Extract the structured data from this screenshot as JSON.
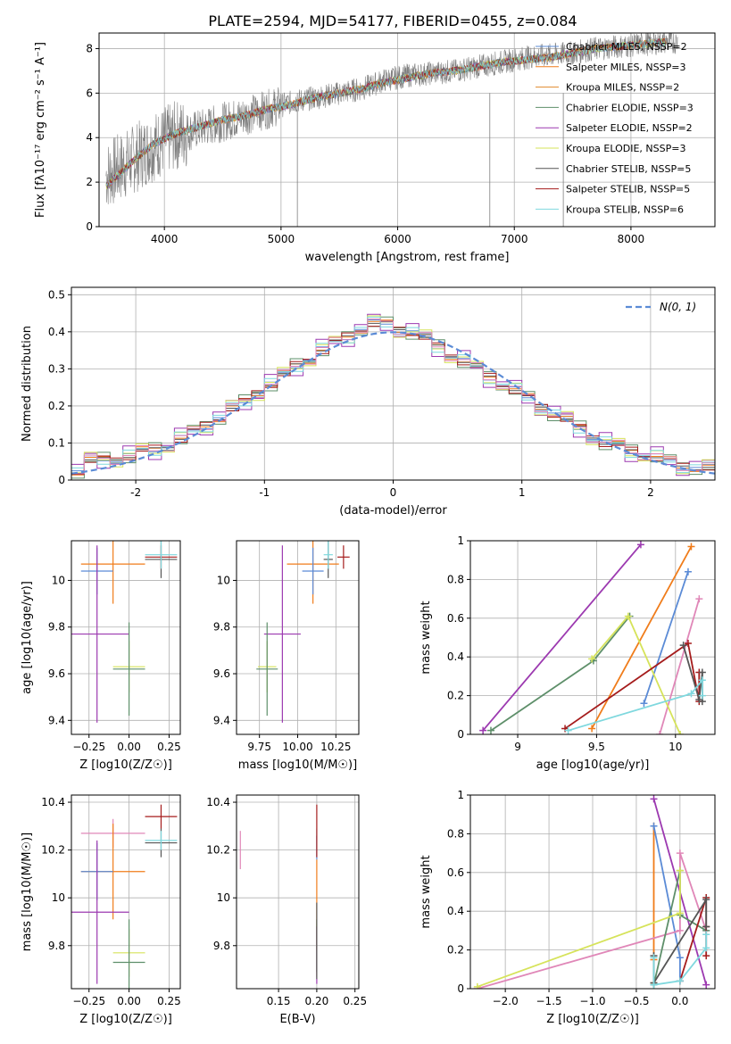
{
  "figure": {
    "title": "PLATE=2594, MJD=54177, FIBERID=0455, z=0.084"
  },
  "chart_data": [
    {
      "id": "spectrum",
      "type": "line",
      "xlabel": "wavelength [Angstrom, rest frame]",
      "ylabel": "Flux [fλ10⁻¹⁷ erg cm⁻² s⁻¹ A⁻¹]",
      "xlim": [
        3440,
        8720
      ],
      "ylim": [
        0,
        8.7
      ],
      "xticks": [
        4000,
        5000,
        6000,
        7000,
        8000
      ],
      "yticks": [
        0,
        2,
        4,
        6,
        8
      ],
      "observed": {
        "color": "#808080",
        "x": [
          3500,
          3700,
          3900,
          4100,
          4300,
          4500,
          4700,
          4900,
          5100,
          5300,
          5500,
          5700,
          5900,
          6100,
          6300,
          6500,
          6700,
          6900,
          7100,
          7300,
          7500,
          7700,
          7900,
          8100,
          8300
        ],
        "y": [
          2.3,
          2.9,
          3.6,
          4.1,
          4.4,
          4.7,
          5.0,
          5.3,
          5.6,
          5.8,
          6.0,
          6.2,
          6.6,
          6.8,
          6.9,
          7.0,
          7.2,
          7.4,
          7.6,
          7.7,
          7.8,
          8.0,
          8.1,
          8.2,
          8.3
        ]
      },
      "model": {
        "x": [
          3500,
          3700,
          3900,
          4100,
          4300,
          4500,
          4700,
          4900,
          5100,
          5300,
          5500,
          5700,
          5900,
          6100,
          6300,
          6500,
          6700,
          6900,
          7100,
          7300,
          7500,
          7700,
          7900,
          8100,
          8300
        ],
        "y": [
          1.8,
          2.8,
          3.7,
          4.2,
          4.5,
          4.8,
          5.0,
          5.3,
          5.5,
          5.8,
          6.0,
          6.2,
          6.5,
          6.7,
          6.9,
          7.0,
          7.2,
          7.4,
          7.5,
          7.6,
          7.8,
          8.0,
          8.1,
          8.2,
          8.3
        ]
      },
      "legend": [
        {
          "label": "Chabrier MILES, N_SSP=2",
          "color": "#5b8bd6"
        },
        {
          "label": "Salpeter MILES, N_SSP=3",
          "color": "#f07c1a"
        },
        {
          "label": "Kroupa MILES, N_SSP=2",
          "color": "#e08a2c"
        },
        {
          "label": "Chabrier ELODIE, N_SSP=3",
          "color": "#5e8f6a"
        },
        {
          "label": "Salpeter ELODIE, N_SSP=2",
          "color": "#9c39b0"
        },
        {
          "label": "Kroupa ELODIE, N_SSP=3",
          "color": "#d6e35a"
        },
        {
          "label": "Chabrier STELIB, N_SSP=5",
          "color": "#555555"
        },
        {
          "label": "Salpeter STELIB, N_SSP=5",
          "color": "#a51c1c"
        },
        {
          "label": "Kroupa STELIB, N_SSP=6",
          "color": "#7fd8de"
        }
      ],
      "legend_position": "right"
    },
    {
      "id": "residuals",
      "type": "line",
      "xlabel": "(data-model)/error",
      "ylabel": "Normed distribution",
      "xlim": [
        -2.5,
        2.5
      ],
      "ylim": [
        0,
        0.52
      ],
      "xticks": [
        -2,
        -1,
        0,
        1,
        2
      ],
      "yticks": [
        0.0,
        0.1,
        0.2,
        0.3,
        0.4,
        0.5
      ],
      "series": [
        {
          "name": "N(0,1)",
          "color": "#5b8bd6",
          "dashed": true,
          "x": [
            -2.5,
            -2.0,
            -1.5,
            -1.0,
            -0.5,
            0.0,
            0.5,
            1.0,
            1.5,
            2.0,
            2.5
          ],
          "y": [
            0.018,
            0.054,
            0.13,
            0.242,
            0.352,
            0.399,
            0.352,
            0.242,
            0.13,
            0.054,
            0.018
          ]
        }
      ],
      "histogram_bin_edges": [
        -2.5,
        -2.4,
        -2.3,
        -2.2,
        -2.1,
        -2.0,
        -1.9,
        -1.8,
        -1.7,
        -1.6,
        -1.5,
        -1.4,
        -1.3,
        -1.2,
        -1.1,
        -1.0,
        -0.9,
        -0.8,
        -0.7,
        -0.6,
        -0.5,
        -0.4,
        -0.3,
        -0.2,
        -0.1,
        0.0,
        0.1,
        0.2,
        0.3,
        0.4,
        0.5,
        0.6,
        0.7,
        0.8,
        0.9,
        1.0,
        1.1,
        1.2,
        1.3,
        1.4,
        1.5,
        1.6,
        1.7,
        1.8,
        1.9,
        2.0,
        2.1,
        2.2,
        2.3,
        2.4,
        2.5
      ],
      "histogram_base": [
        0.025,
        0.05,
        0.055,
        0.06,
        0.065,
        0.075,
        0.085,
        0.095,
        0.11,
        0.13,
        0.15,
        0.17,
        0.19,
        0.21,
        0.24,
        0.26,
        0.28,
        0.31,
        0.33,
        0.35,
        0.37,
        0.39,
        0.41,
        0.42,
        0.42,
        0.41,
        0.4,
        0.38,
        0.36,
        0.34,
        0.32,
        0.3,
        0.28,
        0.26,
        0.24,
        0.22,
        0.2,
        0.18,
        0.16,
        0.14,
        0.12,
        0.1,
        0.09,
        0.08,
        0.07,
        0.06,
        0.05,
        0.04,
        0.035,
        0.03
      ],
      "histograms": [
        {
          "color": "#5b8bd6",
          "jitter": 0.012
        },
        {
          "color": "#f07c1a",
          "jitter": -0.015
        },
        {
          "color": "#5e8f6a",
          "jitter": 0.02
        },
        {
          "color": "#9c39b0",
          "jitter": 0.03
        },
        {
          "color": "#d6e35a",
          "jitter": -0.025
        },
        {
          "color": "#555555",
          "jitter": 0.008
        },
        {
          "color": "#a51c1c",
          "jitter": -0.01
        },
        {
          "color": "#7fd8de",
          "jitter": -0.02
        },
        {
          "color": "#e087b8",
          "jitter": 0.018
        }
      ],
      "legend": [
        {
          "label": "N(0, 1)",
          "color": "#5b8bd6"
        }
      ],
      "legend_position": "top-right"
    },
    {
      "id": "age-vs-Z",
      "type": "scatter",
      "xlabel": "Z [log10(Z/Z☉)]",
      "ylabel": "age  [log10(age/yr)]",
      "xlim": [
        -0.36,
        0.32
      ],
      "ylim": [
        9.34,
        10.17
      ],
      "xticks": [
        -0.25,
        0.0,
        0.25
      ],
      "xticklabels": [
        "−0.25",
        "0.00",
        "0.25"
      ],
      "yticks": [
        9.4,
        9.6,
        9.8,
        10.0
      ],
      "points": [
        {
          "color": "#f07c1a",
          "x": -0.1,
          "xerr": 0.2,
          "y": 10.07,
          "yerr": 0.17
        },
        {
          "color": "#5b8bd6",
          "x": -0.2,
          "xerr": 0.1,
          "y": 10.04,
          "yerr": 0.1
        },
        {
          "color": "#9c39b0",
          "x": -0.2,
          "xerr": 0.2,
          "y": 9.77,
          "yerr": 0.38
        },
        {
          "color": "#d6e35a",
          "x": 0.0,
          "xerr": 0.1,
          "y": 9.63,
          "yerr": 0.11
        },
        {
          "color": "#5e8f6a",
          "x": 0.0,
          "xerr": 0.1,
          "y": 9.62,
          "yerr": 0.2
        },
        {
          "color": "#555555",
          "x": 0.2,
          "xerr": 0.1,
          "y": 10.09,
          "yerr": 0.08
        },
        {
          "color": "#a51c1c",
          "x": 0.2,
          "xerr": 0.1,
          "y": 10.1,
          "yerr": 0.05
        },
        {
          "color": "#7fd8de",
          "x": 0.2,
          "xerr": 0.1,
          "y": 10.11,
          "yerr": 0.06
        }
      ]
    },
    {
      "id": "age-vs-mass",
      "type": "scatter",
      "xlabel": "mass [log10(M/M☉)]",
      "ylabel": "",
      "xlim": [
        9.6,
        10.4
      ],
      "ylim": [
        9.34,
        10.17
      ],
      "xticks": [
        9.75,
        10.0,
        10.25
      ],
      "xticklabels": [
        "9.75",
        "10.00",
        "10.25"
      ],
      "yticks": [
        9.4,
        9.6,
        9.8,
        10.0
      ],
      "points": [
        {
          "color": "#f07c1a",
          "x": 10.1,
          "xerr": 0.17,
          "y": 10.07,
          "yerr": 0.17
        },
        {
          "color": "#5b8bd6",
          "x": 10.1,
          "xerr": 0.07,
          "y": 10.04,
          "yerr": 0.1
        },
        {
          "color": "#9c39b0",
          "x": 9.9,
          "xerr": 0.12,
          "y": 9.77,
          "yerr": 0.38
        },
        {
          "color": "#d6e35a",
          "x": 9.8,
          "xerr": 0.06,
          "y": 9.63,
          "yerr": 0.11
        },
        {
          "color": "#5e8f6a",
          "x": 9.8,
          "xerr": 0.07,
          "y": 9.62,
          "yerr": 0.2
        },
        {
          "color": "#555555",
          "x": 10.2,
          "xerr": 0.03,
          "y": 10.09,
          "yerr": 0.08
        },
        {
          "color": "#a51c1c",
          "x": 10.3,
          "xerr": 0.04,
          "y": 10.1,
          "yerr": 0.05
        },
        {
          "color": "#7fd8de",
          "x": 10.2,
          "xerr": 0.03,
          "y": 10.11,
          "yerr": 0.06
        }
      ]
    },
    {
      "id": "weight-vs-age",
      "type": "line",
      "xlabel": "age  [log10(age/yr)]",
      "ylabel": "mass weight",
      "xlim": [
        8.7,
        10.25
      ],
      "ylim": [
        0.0,
        1.0
      ],
      "xticks": [
        9.0,
        9.5,
        10.0
      ],
      "yticks": [
        0.0,
        0.2,
        0.4,
        0.6,
        0.8,
        1.0
      ],
      "series": [
        {
          "color": "#9c39b0",
          "x": [
            8.78,
            9.78
          ],
          "y": [
            0.02,
            0.98
          ]
        },
        {
          "color": "#f07c1a",
          "x": [
            9.47,
            10.1
          ],
          "y": [
            0.03,
            0.97
          ]
        },
        {
          "color": "#5b8bd6",
          "x": [
            9.8,
            10.08
          ],
          "y": [
            0.16,
            0.84
          ]
        },
        {
          "color": "#e087b8",
          "x": [
            9.9,
            10.15
          ],
          "y": [
            0.0,
            0.7
          ]
        },
        {
          "color": "#5e8f6a",
          "x": [
            8.83,
            9.48,
            9.71
          ],
          "y": [
            0.02,
            0.38,
            0.61
          ]
        },
        {
          "color": "#d6e35a",
          "x": [
            9.47,
            9.7,
            10.03
          ],
          "y": [
            0.39,
            0.61,
            0.0
          ]
        },
        {
          "color": "#a51c1c",
          "x": [
            9.3,
            10.08,
            10.15,
            10.15
          ],
          "y": [
            0.03,
            0.47,
            0.17,
            0.32
          ]
        },
        {
          "color": "#555555",
          "x": [
            10.05,
            10.15,
            10.17,
            10.17
          ],
          "y": [
            0.46,
            0.18,
            0.32,
            0.17
          ]
        },
        {
          "color": "#7fd8de",
          "x": [
            9.32,
            10.1,
            10.17,
            10.17
          ],
          "y": [
            0.02,
            0.21,
            0.28,
            0.2
          ]
        }
      ]
    },
    {
      "id": "mass-vs-Z",
      "type": "scatter",
      "xlabel": "Z [log10(Z/Z☉)]",
      "ylabel": "mass [log10(M/M☉)]",
      "xlim": [
        -0.36,
        0.32
      ],
      "ylim": [
        9.62,
        10.43
      ],
      "xticks": [
        -0.25,
        0.0,
        0.25
      ],
      "xticklabels": [
        "−0.25",
        "0.00",
        "0.25"
      ],
      "yticks": [
        9.8,
        10.0,
        10.2,
        10.4
      ],
      "points": [
        {
          "color": "#e087b8",
          "x": -0.1,
          "xerr": 0.2,
          "y": 10.27,
          "yerr": 0.06
        },
        {
          "color": "#f07c1a",
          "x": -0.1,
          "xerr": 0.2,
          "y": 10.11,
          "yerr": 0.2
        },
        {
          "color": "#5b8bd6",
          "x": -0.2,
          "xerr": 0.1,
          "y": 10.11,
          "yerr": 0.12
        },
        {
          "color": "#9c39b0",
          "x": -0.2,
          "xerr": 0.2,
          "y": 9.94,
          "yerr": 0.3
        },
        {
          "color": "#d6e35a",
          "x": 0.0,
          "xerr": 0.1,
          "y": 9.77,
          "yerr": 0.1
        },
        {
          "color": "#5e8f6a",
          "x": 0.0,
          "xerr": 0.1,
          "y": 9.73,
          "yerr": 0.18
        },
        {
          "color": "#555555",
          "x": 0.2,
          "xerr": 0.1,
          "y": 10.23,
          "yerr": 0.06
        },
        {
          "color": "#a51c1c",
          "x": 0.2,
          "xerr": 0.1,
          "y": 10.34,
          "yerr": 0.05
        },
        {
          "color": "#7fd8de",
          "x": 0.2,
          "xerr": 0.1,
          "y": 10.24,
          "yerr": 0.04
        }
      ]
    },
    {
      "id": "mass-vs-ebv",
      "type": "scatter",
      "xlabel": "E(B-V)",
      "ylabel": "",
      "xlim": [
        0.095,
        0.255
      ],
      "ylim": [
        9.62,
        10.43
      ],
      "xticks": [
        0.15,
        0.2,
        0.25
      ],
      "xticklabels": [
        "0.15",
        "0.20",
        "0.25"
      ],
      "yticks": [
        9.8,
        10.0,
        10.2,
        10.4
      ],
      "points": [
        {
          "color": "#e087b8",
          "x": 0.1,
          "xerr": 0,
          "y": 10.2,
          "yerr": 0.08
        },
        {
          "color": "#7fd8de",
          "x": 0.2,
          "xerr": 0,
          "y": 10.23,
          "yerr": 0.06
        },
        {
          "color": "#5b8bd6",
          "x": 0.2,
          "xerr": 0,
          "y": 10.21,
          "yerr": 0.05
        },
        {
          "color": "#a51c1c",
          "x": 0.2,
          "xerr": 0,
          "y": 10.28,
          "yerr": 0.11
        },
        {
          "color": "#f07c1a",
          "x": 0.2,
          "xerr": 0,
          "y": 9.97,
          "yerr": 0.19
        },
        {
          "color": "#d6e35a",
          "x": 0.2,
          "xerr": 0,
          "y": 9.78,
          "yerr": 0.11
        },
        {
          "color": "#5e8f6a",
          "x": 0.2,
          "xerr": 0,
          "y": 9.8,
          "yerr": 0.11
        },
        {
          "color": "#9c39b0",
          "x": 0.2,
          "xerr": 0,
          "y": 9.76,
          "yerr": 0.12
        },
        {
          "color": "#555555",
          "x": 0.2,
          "xerr": 0,
          "y": 9.82,
          "yerr": 0.16
        }
      ]
    },
    {
      "id": "weight-vs-Z",
      "type": "line",
      "xlabel": "Z [log10(Z/Z☉)]",
      "ylabel": "mass weight",
      "xlim": [
        -2.4,
        0.4
      ],
      "ylim": [
        0.0,
        1.0
      ],
      "xticks": [
        -2.0,
        -1.5,
        -1.0,
        -0.5,
        0.0
      ],
      "xticklabels": [
        "−2.0",
        "−1.5",
        "−1.0",
        "−0.5",
        "0.0"
      ],
      "yticks": [
        0.0,
        0.2,
        0.4,
        0.6,
        0.8,
        1.0
      ],
      "series": [
        {
          "color": "#9c39b0",
          "x": [
            -0.3,
            0.3
          ],
          "y": [
            0.98,
            0.02
          ]
        },
        {
          "color": "#f07c1a",
          "x": [
            -0.3,
            -0.3,
            -0.3
          ],
          "y": [
            0.03,
            0.84,
            0.15
          ]
        },
        {
          "color": "#5b8bd6",
          "x": [
            -0.3,
            0.0,
            0.0
          ],
          "y": [
            0.84,
            0.16,
            0.04
          ]
        },
        {
          "color": "#e087b8",
          "x": [
            -2.32,
            0.0,
            0.0,
            0.3
          ],
          "y": [
            0.0,
            0.3,
            0.7,
            0.3
          ]
        },
        {
          "color": "#5e8f6a",
          "x": [
            -0.3,
            0.0,
            0.0,
            0.3
          ],
          "y": [
            0.02,
            0.61,
            0.38,
            0.3
          ]
        },
        {
          "color": "#d6e35a",
          "x": [
            -2.32,
            0.0,
            0.0
          ],
          "y": [
            0.01,
            0.39,
            0.61
          ]
        },
        {
          "color": "#a51c1c",
          "x": [
            0.0,
            0.3,
            0.3,
            0.3
          ],
          "y": [
            0.04,
            0.47,
            0.17,
            0.32
          ]
        },
        {
          "color": "#555555",
          "x": [
            -0.3,
            -0.3,
            0.3,
            0.3
          ],
          "y": [
            0.17,
            0.03,
            0.46,
            0.32
          ]
        },
        {
          "color": "#7fd8de",
          "x": [
            -0.3,
            -0.3,
            0.0,
            0.3,
            0.3
          ],
          "y": [
            0.16,
            0.02,
            0.04,
            0.21,
            0.28
          ]
        }
      ]
    }
  ]
}
